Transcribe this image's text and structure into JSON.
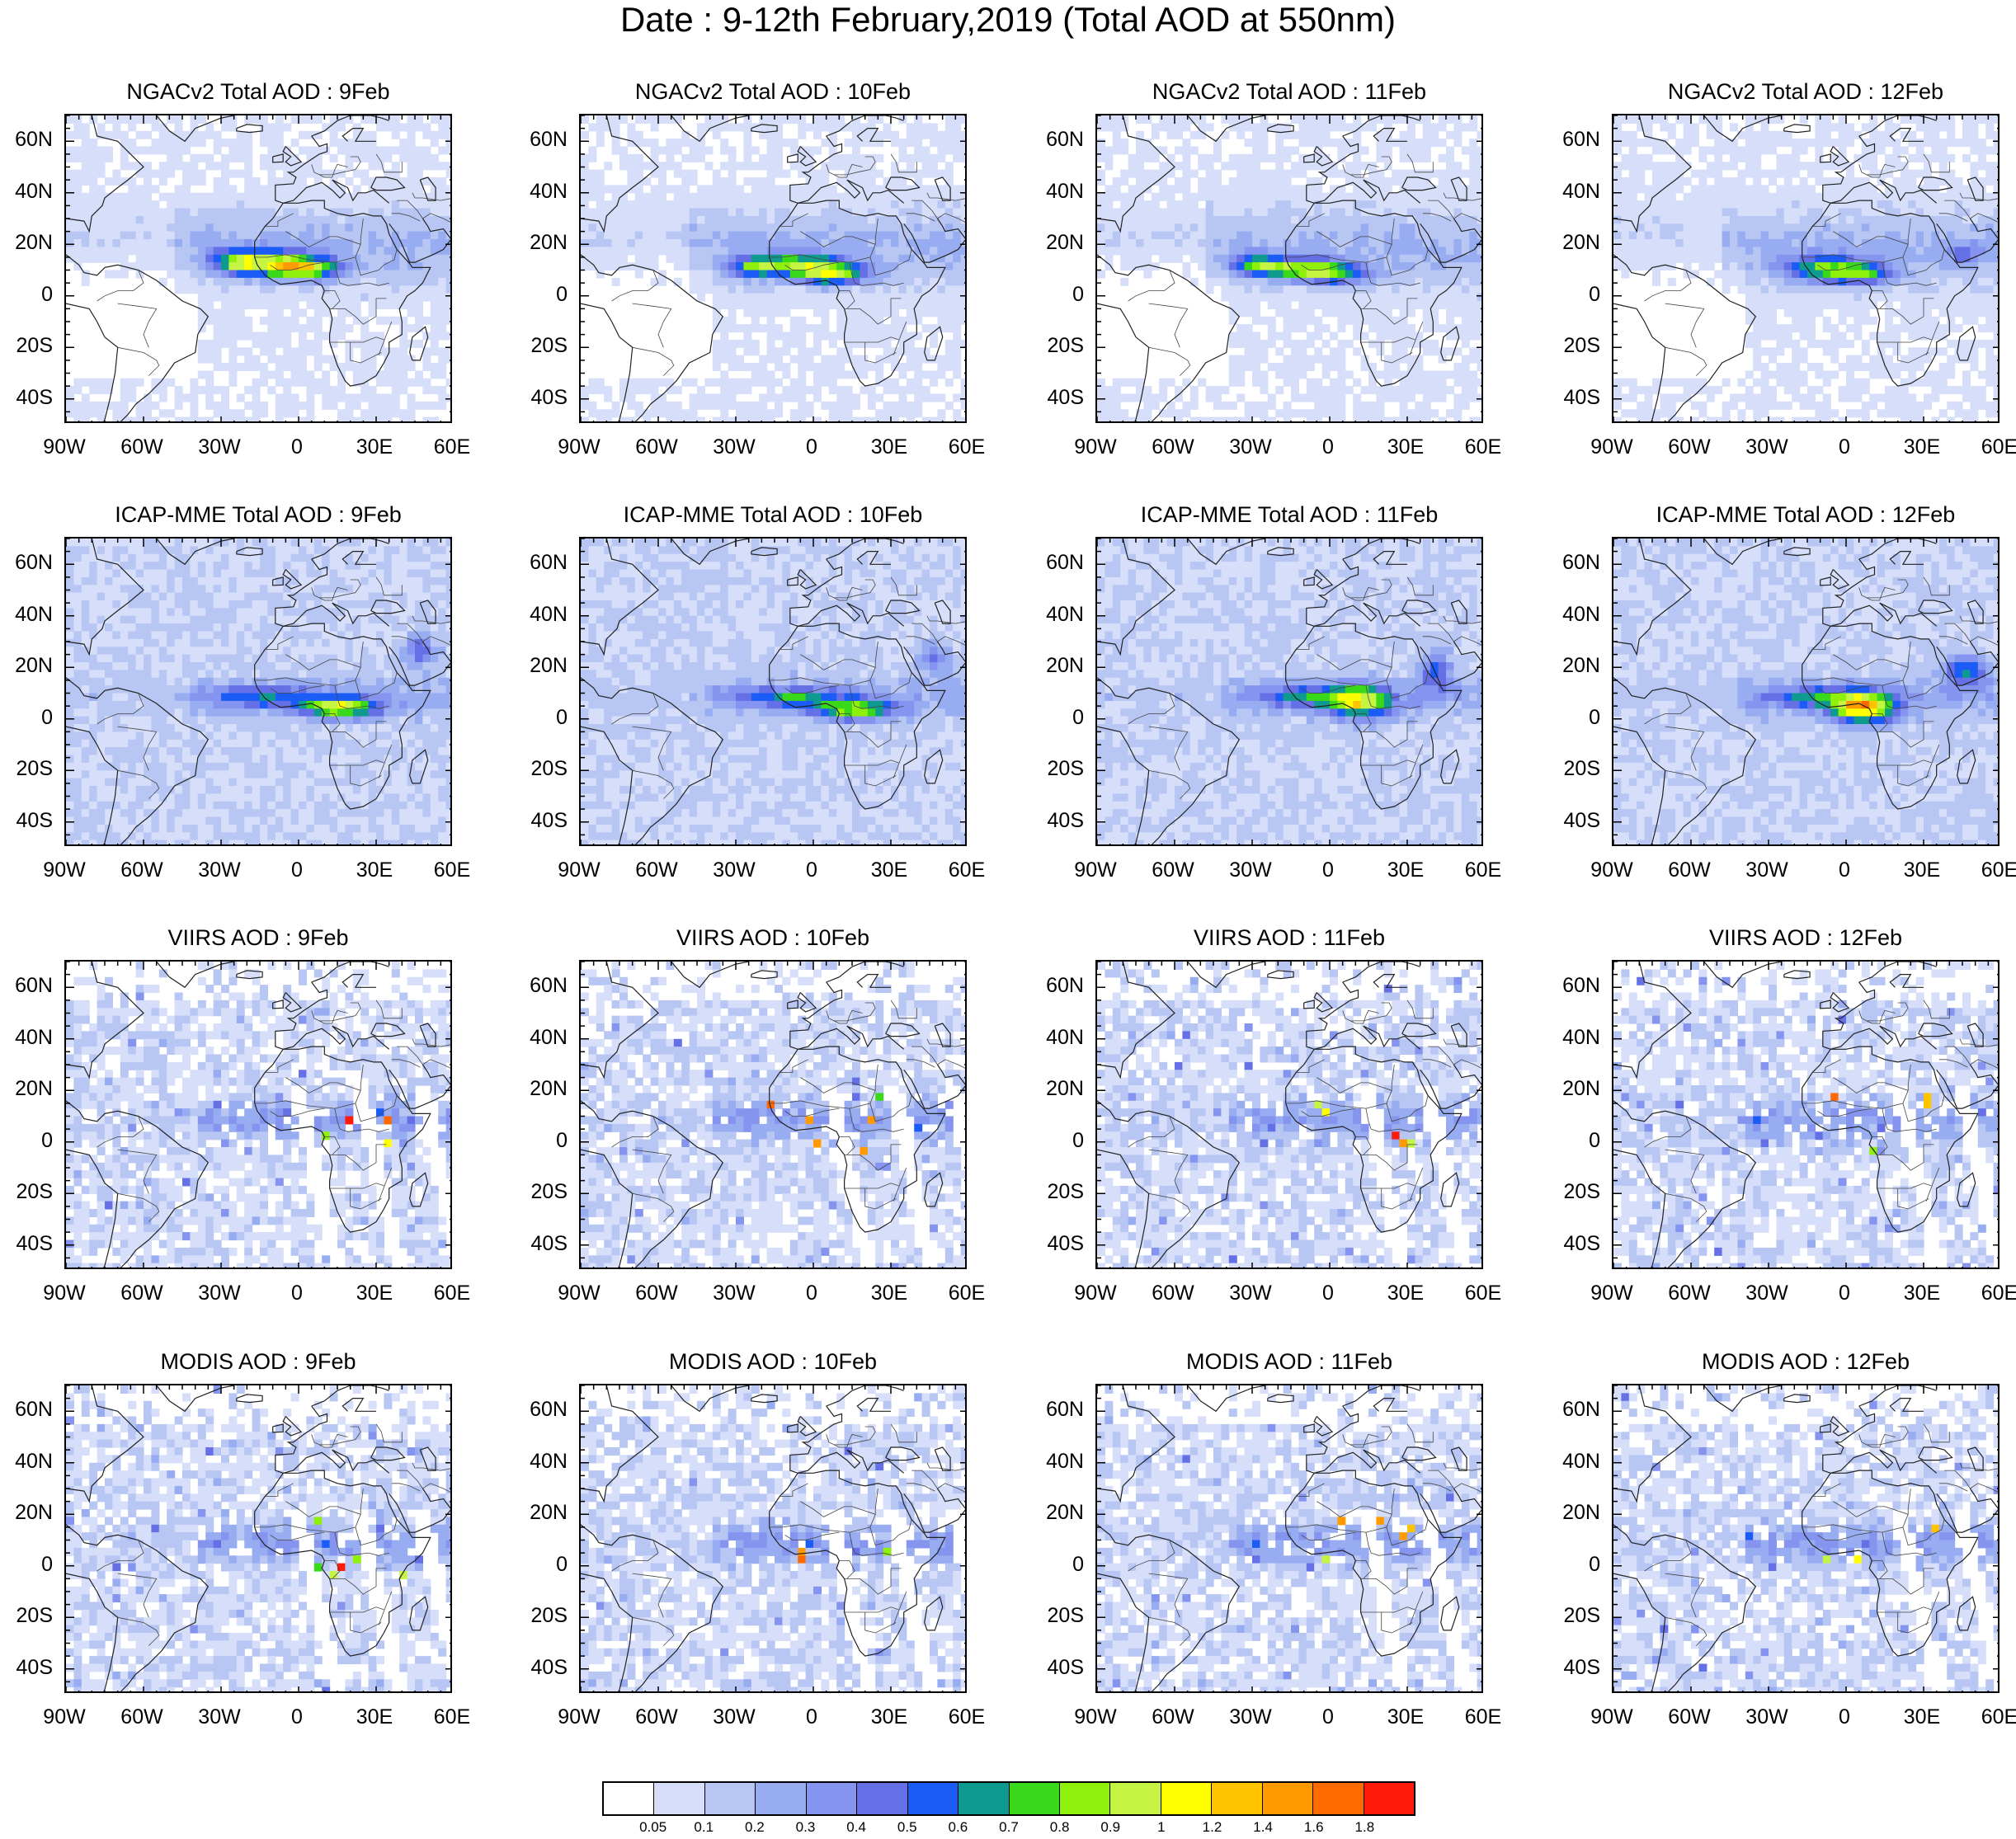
{
  "title": "Date : 9-12th February,2019 (Total AOD at 550nm)",
  "lat_labels": [
    "60N",
    "40N",
    "20N",
    "0",
    "20S",
    "40S"
  ],
  "lon_labels": [
    "90W",
    "60W",
    "30W",
    "0",
    "30E",
    "60E"
  ],
  "colorbar": {
    "colors": [
      "#ffffff",
      "#d6def9",
      "#b8c6f4",
      "#98acf2",
      "#8494ef",
      "#6670e6",
      "#1a5cf5",
      "#0f9a8f",
      "#3ad81a",
      "#8ff00c",
      "#c5f542",
      "#ffff00",
      "#ffc400",
      "#ff9a00",
      "#ff6a00",
      "#ff1a0a"
    ],
    "labels": [
      "0.05",
      "0.1",
      "0.2",
      "0.3",
      "0.4",
      "0.5",
      "0.6",
      "0.7",
      "0.8",
      "0.9",
      "1",
      "1.2",
      "1.4",
      "1.6",
      "1.8"
    ]
  },
  "panels": [
    {
      "title": "NGACv2 Total AOD : 9Feb",
      "product": "model",
      "day": 9
    },
    {
      "title": "NGACv2 Total AOD : 10Feb",
      "product": "model",
      "day": 10
    },
    {
      "title": "NGACv2 Total AOD : 11Feb",
      "product": "model",
      "day": 11
    },
    {
      "title": "NGACv2 Total AOD : 12Feb",
      "product": "model",
      "day": 12
    },
    {
      "title": "ICAP-MME Total AOD : 9Feb",
      "product": "ensemble",
      "day": 9
    },
    {
      "title": "ICAP-MME Total AOD : 10Feb",
      "product": "ensemble",
      "day": 10
    },
    {
      "title": "ICAP-MME Total AOD : 11Feb",
      "product": "ensemble",
      "day": 11
    },
    {
      "title": "ICAP-MME Total AOD : 12Feb",
      "product": "ensemble",
      "day": 12
    },
    {
      "title": "VIIRS AOD : 9Feb",
      "product": "satellite",
      "day": 9
    },
    {
      "title": "VIIRS AOD : 10Feb",
      "product": "satellite",
      "day": 10
    },
    {
      "title": "VIIRS AOD : 11Feb",
      "product": "satellite",
      "day": 11
    },
    {
      "title": "VIIRS AOD : 12Feb",
      "product": "satellite",
      "day": 12
    },
    {
      "title": "MODIS AOD : 9Feb",
      "product": "satellite",
      "day": 9
    },
    {
      "title": "MODIS AOD : 10Feb",
      "product": "satellite",
      "day": 10
    },
    {
      "title": "MODIS AOD : 11Feb",
      "product": "satellite",
      "day": 11
    },
    {
      "title": "MODIS AOD : 12Feb",
      "product": "satellite",
      "day": 12
    }
  ]
}
